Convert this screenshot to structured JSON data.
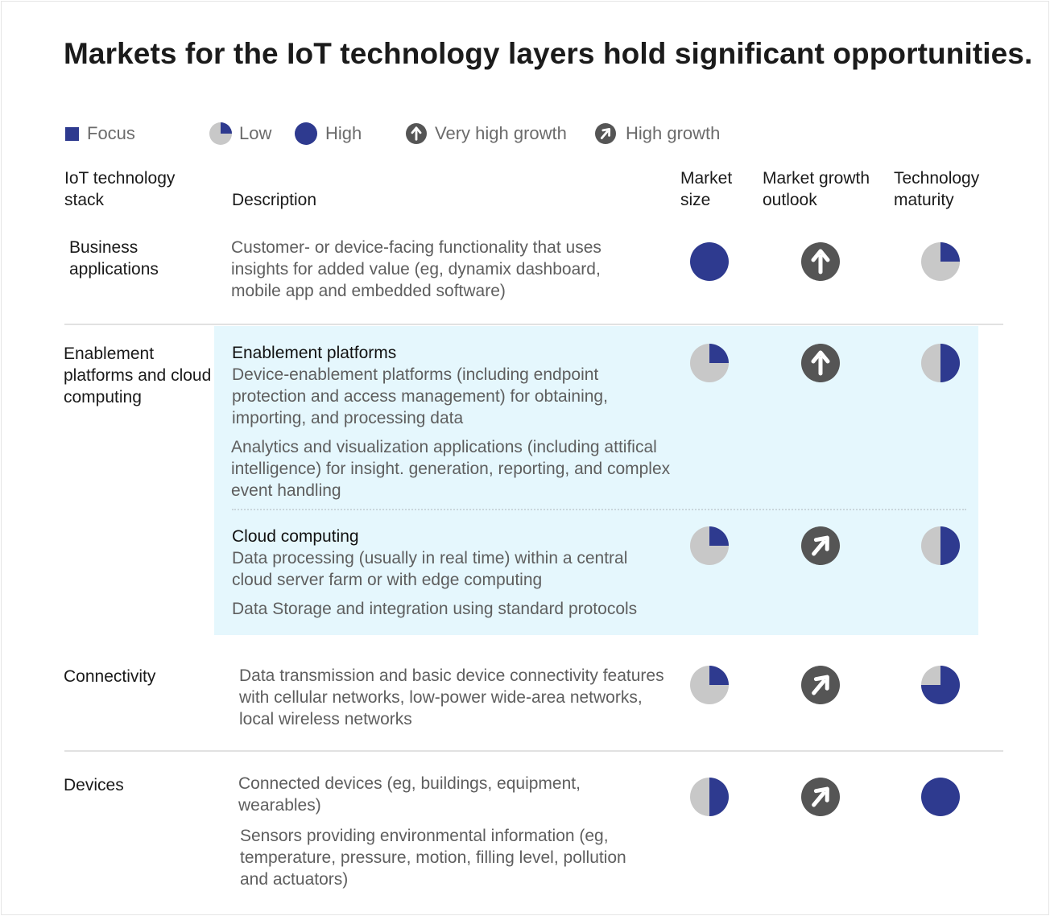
{
  "title": "Markets for the IoT technology layers hold significant opportunities.",
  "colors": {
    "focus": "#2e3a8f",
    "base": "#c8c8c8",
    "arrow_bg": "#555555",
    "highlight": "#e5f7fd"
  },
  "legend": {
    "focus": "Focus",
    "low": "Low",
    "high": "High",
    "very_high_growth": "Very high growth",
    "high_growth": "High growth"
  },
  "headers": {
    "stack": "IoT technology stack",
    "description": "Description",
    "market_size": "Market size",
    "growth": "Market growth outlook",
    "maturity": "Technology maturity"
  },
  "rows": {
    "business": {
      "stack": "Business applications",
      "description": "Customer- or device-facing functionality that uses insights for added value (eg, dynamix dashboard, mobile app and embedded software)",
      "market_size": 1.0,
      "growth": "very-high",
      "maturity": 0.25
    },
    "enablement": {
      "stack": "Enablement platforms and cloud computing",
      "platforms": {
        "title": "Enablement platforms",
        "description": "Device-enablement platforms (including endpoint protection and access management) for obtaining, importing, and processing data",
        "description2": "Analytics and visualization applications (including attifical intelligence) for insight. generation, reporting, and complex event handling",
        "market_size": 0.25,
        "growth": "very-high",
        "maturity": 0.5
      },
      "cloud": {
        "title": "Cloud computing",
        "description": "Data processing (usually in real time) within a central cloud server farm or with edge computing",
        "description2": "Data Storage and integration using standard protocols",
        "market_size": 0.25,
        "growth": "high",
        "maturity": 0.5
      }
    },
    "connectivity": {
      "stack": "Connectivity",
      "description": "Data transmission and basic device connectivity features with cellular networks, low-power wide-area networks, local wireless networks",
      "market_size": 0.25,
      "growth": "high",
      "maturity": 0.75
    },
    "devices": {
      "stack": "Devices",
      "description": "Connected devices (eg, buildings, equipment, wearables)",
      "description2": "Sensors providing environmental information (eg, temperature, pressure, motion, filling level, pollution and actuators)",
      "market_size": 0.5,
      "growth": "high",
      "maturity": 1.0
    }
  }
}
